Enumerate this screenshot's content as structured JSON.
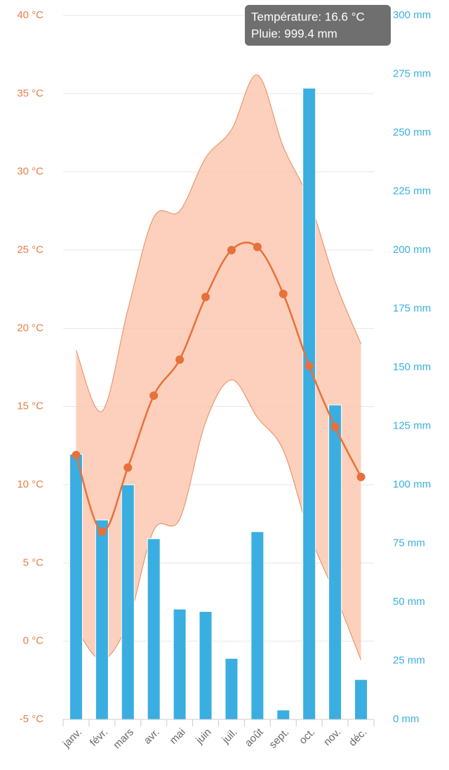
{
  "chart_data": {
    "type": "climate",
    "categories": [
      "janv.",
      "févr.",
      "mars",
      "avr.",
      "mai",
      "juin",
      "juil.",
      "août",
      "sept.",
      "oct.",
      "nov.",
      "déc."
    ],
    "series": [
      {
        "type": "line",
        "color": "#e8703a",
        "values": [
          11.9,
          7.0,
          11.1,
          15.7,
          18.0,
          22.0,
          25.0,
          25.2,
          22.2,
          17.6,
          13.7,
          10.5
        ]
      },
      {
        "type": "range",
        "color": "#fbc4ab",
        "low": [
          0.8,
          -1.2,
          1.2,
          7.1,
          7.8,
          14.0,
          16.7,
          14.3,
          12.2,
          6.9,
          3.0,
          -1.2
        ],
        "high": [
          18.6,
          14.7,
          21.2,
          27.1,
          27.5,
          30.9,
          32.7,
          36.2,
          31.6,
          28.2,
          23.0,
          19.0
        ]
      },
      {
        "type": "bar",
        "color": "#3aaee0",
        "axis": "y2",
        "values": [
          113,
          85,
          100,
          77,
          47,
          46,
          26,
          80,
          4,
          269,
          134,
          17
        ]
      }
    ],
    "ylim": [
      -5,
      40
    ],
    "yticks": [
      {
        "value": -5,
        "label": "-5 °C"
      },
      {
        "value": 0,
        "label": "0 °C"
      },
      {
        "value": 5,
        "label": "5 °C"
      },
      {
        "value": 10,
        "label": "10 °C"
      },
      {
        "value": 15,
        "label": "15 °C"
      },
      {
        "value": 20,
        "label": "20 °C"
      },
      {
        "value": 25,
        "label": "25 °C"
      },
      {
        "value": 30,
        "label": "30 °C"
      },
      {
        "value": 35,
        "label": "35 °C"
      },
      {
        "value": 40,
        "label": "40 °C"
      }
    ],
    "y2lim": [
      0,
      300
    ],
    "y2ticks": [
      {
        "value": 0,
        "label": "0 mm"
      },
      {
        "value": 25,
        "label": "25 mm"
      },
      {
        "value": 50,
        "label": "50 mm"
      },
      {
        "value": 75,
        "label": "75 mm"
      },
      {
        "value": 100,
        "label": "100 mm"
      },
      {
        "value": 125,
        "label": "125 mm"
      },
      {
        "value": 150,
        "label": "150 mm"
      },
      {
        "value": 175,
        "label": "175 mm"
      },
      {
        "value": 200,
        "label": "200 mm"
      },
      {
        "value": 225,
        "label": "225 mm"
      },
      {
        "value": 250,
        "label": "250 mm"
      },
      {
        "value": 275,
        "label": "275 mm"
      },
      {
        "value": 300,
        "label": "300 mm"
      }
    ],
    "grid": true,
    "tooltip": [
      "Température: 16.6 °C",
      "Pluie: 999.4 mm"
    ]
  }
}
